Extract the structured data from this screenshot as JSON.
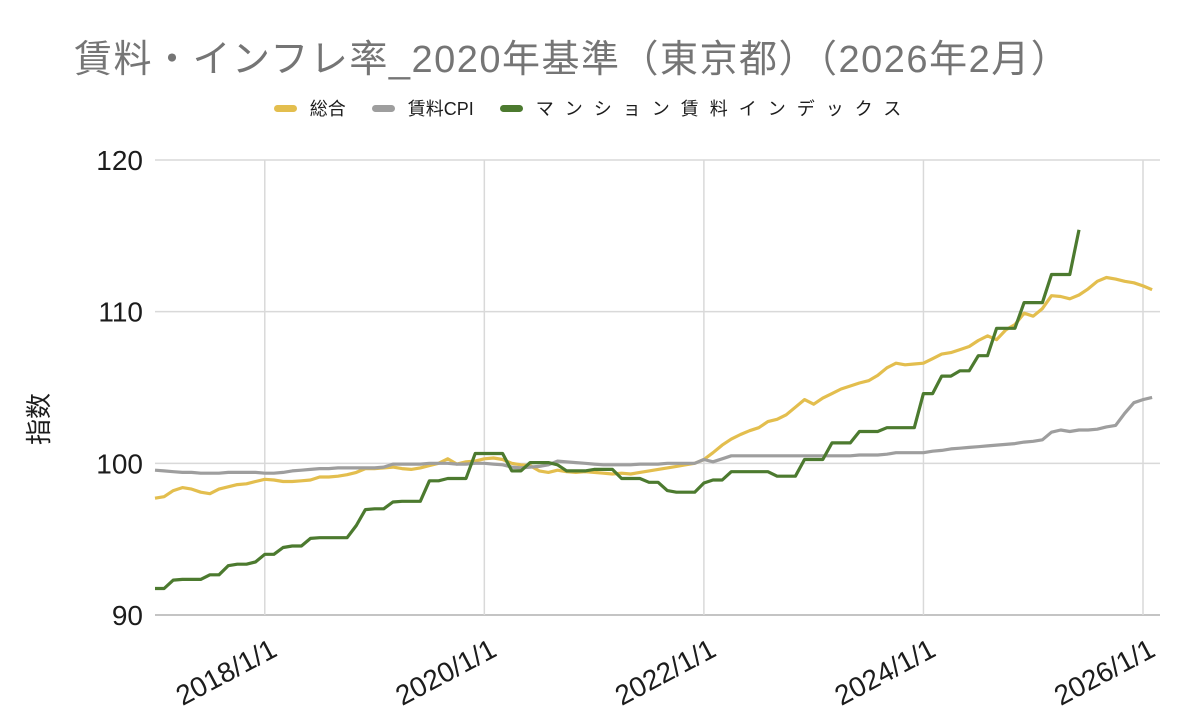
{
  "title": "賃料・インフレ率_2020年基準（東京都）（2026年2月）",
  "colors": {
    "title_text": "#757575",
    "tick_text": "#1c1c1c",
    "grid": "#d9d9d9",
    "axis": "#c4c4c4",
    "background": "#ffffff",
    "series_yellow": "#e3be4e",
    "series_gray": "#9e9e9e",
    "series_green": "#4c7a2f"
  },
  "chart_data": {
    "type": "line",
    "title": "賃料・インフレ率_2020年基準（東京都）（2026年2月）",
    "xlabel": "",
    "ylabel": "指数",
    "ylim": [
      90,
      120
    ],
    "y_ticks": [
      90,
      100,
      110,
      120
    ],
    "x_unit": "month",
    "x_start": "2017/1",
    "x_end": "2026/2",
    "x_tick_labels": [
      "2018/1/1",
      "2020/1/1",
      "2022/1/1",
      "2024/1/1",
      "2026/1/1"
    ],
    "x_tick_indices": [
      12,
      36,
      60,
      84,
      108
    ],
    "grid": true,
    "legend_position": "top",
    "series": [
      {
        "name": "総合",
        "color": "#e3be4e",
        "values": [
          97.7,
          97.8,
          98.2,
          98.4,
          98.3,
          98.1,
          98.0,
          98.3,
          98.45,
          98.6,
          98.65,
          98.8,
          98.95,
          98.9,
          98.8,
          98.8,
          98.85,
          98.9,
          99.1,
          99.1,
          99.15,
          99.25,
          99.4,
          99.65,
          99.65,
          99.7,
          99.75,
          99.65,
          99.6,
          99.7,
          99.85,
          100.0,
          100.3,
          99.95,
          100.1,
          100.15,
          100.3,
          100.35,
          100.25,
          100.0,
          99.9,
          99.85,
          99.5,
          99.4,
          99.55,
          99.45,
          99.4,
          99.45,
          99.4,
          99.35,
          99.3,
          99.35,
          99.3,
          99.4,
          99.5,
          99.6,
          99.7,
          99.8,
          99.9,
          100.0,
          100.25,
          100.7,
          101.2,
          101.6,
          101.9,
          102.15,
          102.35,
          102.75,
          102.9,
          103.2,
          103.7,
          104.2,
          103.9,
          104.3,
          104.6,
          104.9,
          105.1,
          105.3,
          105.45,
          105.8,
          106.3,
          106.6,
          106.5,
          106.55,
          106.6,
          106.9,
          107.2,
          107.3,
          107.5,
          107.7,
          108.1,
          108.4,
          108.15,
          108.8,
          109.15,
          109.9,
          109.7,
          110.2,
          111.05,
          111.0,
          110.85,
          111.1,
          111.5,
          112.0,
          112.25,
          112.15,
          112.0,
          111.9,
          111.7,
          111.45
        ]
      },
      {
        "name": "賃料CPI",
        "color": "#9e9e9e",
        "values": [
          99.55,
          99.5,
          99.45,
          99.4,
          99.4,
          99.35,
          99.35,
          99.35,
          99.4,
          99.4,
          99.4,
          99.4,
          99.35,
          99.35,
          99.4,
          99.5,
          99.55,
          99.6,
          99.65,
          99.65,
          99.7,
          99.7,
          99.7,
          99.7,
          99.7,
          99.75,
          99.95,
          99.95,
          99.95,
          99.95,
          100.0,
          100.0,
          100.0,
          99.95,
          99.95,
          100.0,
          100.0,
          99.95,
          99.9,
          99.75,
          99.7,
          99.75,
          99.8,
          99.9,
          100.15,
          100.1,
          100.05,
          100.0,
          99.95,
          99.9,
          99.9,
          99.9,
          99.9,
          99.95,
          99.95,
          99.95,
          100.0,
          100.0,
          100.0,
          100.0,
          100.25,
          100.1,
          100.3,
          100.5,
          100.5,
          100.5,
          100.5,
          100.5,
          100.5,
          100.5,
          100.5,
          100.5,
          100.5,
          100.5,
          100.5,
          100.5,
          100.5,
          100.55,
          100.55,
          100.55,
          100.6,
          100.7,
          100.7,
          100.7,
          100.7,
          100.8,
          100.85,
          100.95,
          101.0,
          101.05,
          101.1,
          101.15,
          101.2,
          101.25,
          101.3,
          101.4,
          101.45,
          101.55,
          102.05,
          102.2,
          102.1,
          102.2,
          102.2,
          102.25,
          102.4,
          102.5,
          103.3,
          104.0,
          104.2,
          104.35
        ]
      },
      {
        "name": "マンション賃料インデックス",
        "color": "#4c7a2f",
        "values": [
          91.75,
          91.75,
          92.3,
          92.35,
          92.35,
          92.35,
          92.65,
          92.65,
          93.25,
          93.35,
          93.35,
          93.5,
          94.0,
          94.0,
          94.45,
          94.55,
          94.55,
          95.05,
          95.1,
          95.1,
          95.1,
          95.1,
          95.9,
          96.95,
          97.0,
          97.0,
          97.45,
          97.5,
          97.5,
          97.5,
          98.85,
          98.85,
          99.0,
          99.0,
          99.0,
          100.65,
          100.65,
          100.65,
          100.65,
          99.5,
          99.5,
          100.05,
          100.05,
          100.05,
          99.9,
          99.5,
          99.5,
          99.5,
          99.6,
          99.6,
          99.6,
          99.0,
          99.0,
          99.0,
          98.75,
          98.75,
          98.2,
          98.1,
          98.1,
          98.1,
          98.7,
          98.9,
          98.9,
          99.45,
          99.45,
          99.45,
          99.45,
          99.45,
          99.15,
          99.15,
          99.15,
          100.25,
          100.25,
          100.25,
          101.35,
          101.35,
          101.35,
          102.1,
          102.1,
          102.1,
          102.35,
          102.35,
          102.35,
          102.35,
          104.6,
          104.6,
          105.75,
          105.75,
          106.1,
          106.1,
          107.1,
          107.1,
          108.9,
          108.9,
          108.9,
          110.6,
          110.6,
          110.6,
          112.45,
          112.45,
          112.45,
          115.4,
          null,
          null,
          null,
          null,
          null,
          null,
          null,
          null
        ]
      }
    ]
  }
}
